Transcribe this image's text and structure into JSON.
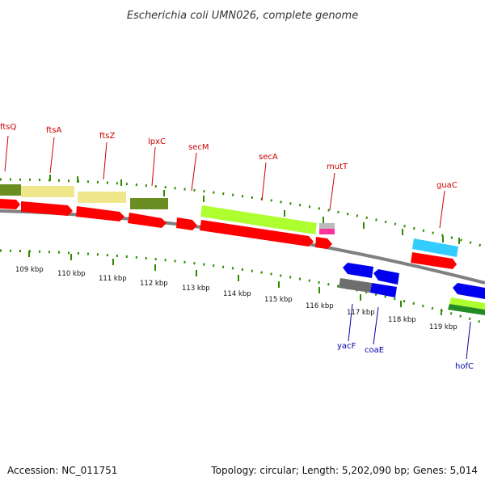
{
  "title": "Escherichia coli UMN026, complete genome",
  "footer": {
    "accession": "Accession: NC_011751",
    "summary": "Topology: circular; Length: 5,202,090 bp; Genes: 5,014"
  },
  "colors": {
    "backbone": "#808080",
    "tick": "#2e8b00",
    "label_forward": "#cc0000",
    "label_reverse": "#0000aa",
    "cds_forward": "#ff0000",
    "cds_reverse": "#0000ee",
    "gene_olive": "#6b8e23",
    "gene_khaki": "#f0e68c",
    "gene_lime": "#adff2f",
    "gene_skyblue": "#33ccff",
    "gene_gray": "#6e6e6e",
    "gene_pink": "#ff3399",
    "gene_green": "#228b22"
  },
  "gene_labels_forward": [
    "ftsQ",
    "ftsA",
    "ftsZ",
    "lpxC",
    "secM",
    "secA",
    "mutT",
    "guaC"
  ],
  "gene_labels_reverse": [
    "yacF",
    "coaE",
    "hofC"
  ],
  "scale_labels": [
    "109 kbp",
    "110 kbp",
    "111 kbp",
    "112 kbp",
    "113 kbp",
    "114 kbp",
    "115 kbp",
    "116 kbp",
    "117 kbp",
    "118 kbp",
    "119 kbp"
  ]
}
